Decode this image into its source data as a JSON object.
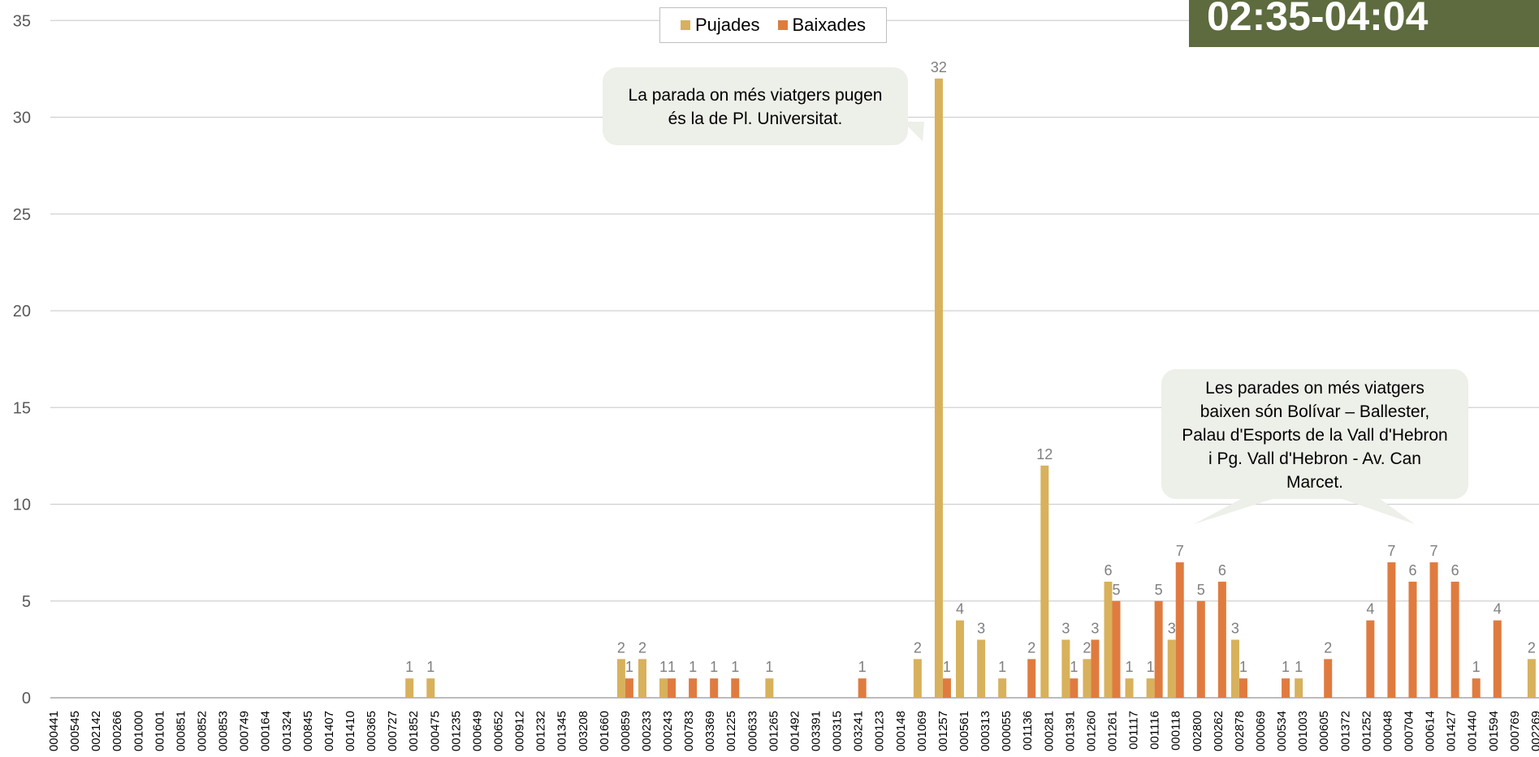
{
  "badge": {
    "text": "02:35-04:04"
  },
  "legend": [
    {
      "label": "Pujades",
      "color": "#d8b15c"
    },
    {
      "label": "Baixades",
      "color": "#e07b3f"
    }
  ],
  "annotations": {
    "pujades": "La parada on més viatgers pugen és la de Pl. Universitat.",
    "baixades": "Les parades on més viatgers baixen són Bolívar – Ballester, Palau d'Esports de la Vall d'Hebron i Pg. Vall d'Hebron - Av. Can Marcet."
  },
  "chart_data": {
    "type": "bar",
    "ylim": [
      0,
      35
    ],
    "yticks": [
      0,
      5,
      10,
      15,
      20,
      25,
      30,
      35
    ],
    "grid": true,
    "legend_position": "top",
    "categories": [
      "000441",
      "000545",
      "002142",
      "000266",
      "001000",
      "001001",
      "000851",
      "000852",
      "000853",
      "000749",
      "000164",
      "001324",
      "000845",
      "001407",
      "001410",
      "000365",
      "000727",
      "001852",
      "000475",
      "001235",
      "000649",
      "000652",
      "000912",
      "001232",
      "001345",
      "003208",
      "001660",
      "000859",
      "000233",
      "000243",
      "000783",
      "003369",
      "001225",
      "000633",
      "001265",
      "001492",
      "003391",
      "000315",
      "003241",
      "000123",
      "000148",
      "001069",
      "001257",
      "000561",
      "000313",
      "000055",
      "001136",
      "000281",
      "001391",
      "001260",
      "001261",
      "001117",
      "001116",
      "000118",
      "002800",
      "000262",
      "002878",
      "000069",
      "000534",
      "001003",
      "000605",
      "001372",
      "001252",
      "000048",
      "000704",
      "000614",
      "001427",
      "001440",
      "001594",
      "000769",
      "002269"
    ],
    "series": [
      {
        "name": "Pujades",
        "values": [
          0,
          0,
          0,
          0,
          0,
          0,
          0,
          0,
          0,
          0,
          0,
          0,
          0,
          0,
          0,
          0,
          0,
          1,
          1,
          0,
          0,
          0,
          0,
          0,
          0,
          0,
          0,
          2,
          2,
          1,
          0,
          0,
          0,
          0,
          1,
          0,
          0,
          0,
          0,
          0,
          0,
          2,
          32,
          4,
          3,
          1,
          0,
          12,
          3,
          2,
          6,
          1,
          1,
          3,
          0,
          0,
          3,
          0,
          0,
          1,
          0,
          0,
          0,
          0,
          0,
          0,
          0,
          0,
          0,
          0,
          2
        ]
      },
      {
        "name": "Baixades",
        "values": [
          0,
          0,
          0,
          0,
          0,
          0,
          0,
          0,
          0,
          0,
          0,
          0,
          0,
          0,
          0,
          0,
          0,
          0,
          0,
          0,
          0,
          0,
          0,
          0,
          0,
          0,
          0,
          1,
          0,
          1,
          1,
          1,
          1,
          0,
          0,
          0,
          0,
          0,
          1,
          0,
          0,
          0,
          1,
          0,
          0,
          0,
          2,
          0,
          1,
          3,
          5,
          0,
          5,
          7,
          5,
          6,
          1,
          0,
          1,
          0,
          2,
          0,
          4,
          7,
          6,
          7,
          6,
          1,
          4,
          0,
          0
        ]
      }
    ]
  }
}
